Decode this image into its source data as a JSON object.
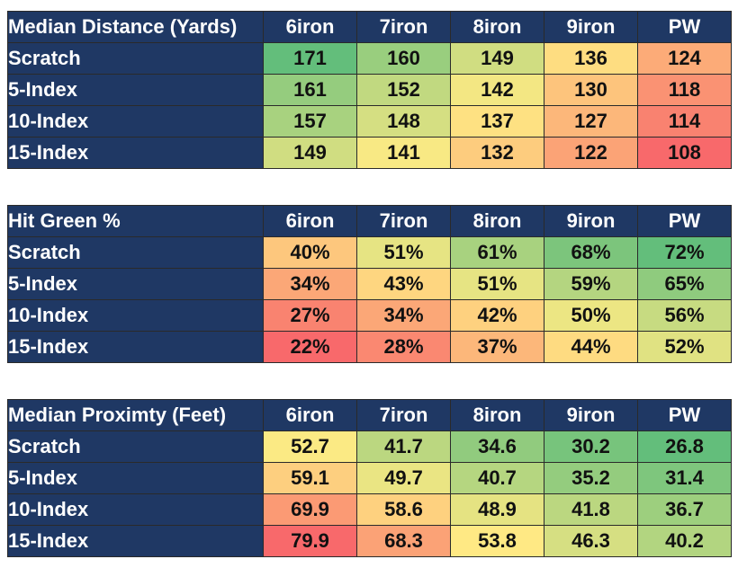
{
  "colors": {
    "header_bg": "#1f3864",
    "header_text": "#ffffff",
    "scale_low": "#f8696b",
    "scale_mid": "#ffeb84",
    "scale_high": "#63be7b"
  },
  "chart_data": [
    {
      "type": "table",
      "title": "Median Distance (Yards)",
      "columns": [
        "6iron",
        "7iron",
        "8iron",
        "9iron",
        "PW"
      ],
      "rows": [
        "Scratch",
        "5-Index",
        "10-Index",
        "15-Index"
      ],
      "higher_is_better": true,
      "values": [
        [
          "171",
          "160",
          "149",
          "136",
          "124"
        ],
        [
          "161",
          "152",
          "142",
          "130",
          "118"
        ],
        [
          "157",
          "148",
          "137",
          "127",
          "114"
        ],
        [
          "149",
          "141",
          "132",
          "122",
          "108"
        ]
      ]
    },
    {
      "type": "table",
      "title": "Hit Green %",
      "columns": [
        "6iron",
        "7iron",
        "8iron",
        "9iron",
        "PW"
      ],
      "rows": [
        "Scratch",
        "5-Index",
        "10-Index",
        "15-Index"
      ],
      "higher_is_better": true,
      "values": [
        [
          "40%",
          "51%",
          "61%",
          "68%",
          "72%"
        ],
        [
          "34%",
          "43%",
          "51%",
          "59%",
          "65%"
        ],
        [
          "27%",
          "34%",
          "42%",
          "50%",
          "56%"
        ],
        [
          "22%",
          "28%",
          "37%",
          "44%",
          "52%"
        ]
      ]
    },
    {
      "type": "table",
      "title": "Median Proximty (Feet)",
      "columns": [
        "6iron",
        "7iron",
        "8iron",
        "9iron",
        "PW"
      ],
      "rows": [
        "Scratch",
        "5-Index",
        "10-Index",
        "15-Index"
      ],
      "higher_is_better": false,
      "values": [
        [
          "52.7",
          "41.7",
          "34.6",
          "30.2",
          "26.8"
        ],
        [
          "59.1",
          "49.7",
          "40.7",
          "35.2",
          "31.4"
        ],
        [
          "69.9",
          "58.6",
          "48.9",
          "41.8",
          "36.7"
        ],
        [
          "79.9",
          "68.3",
          "53.8",
          "46.3",
          "40.2"
        ]
      ]
    }
  ]
}
